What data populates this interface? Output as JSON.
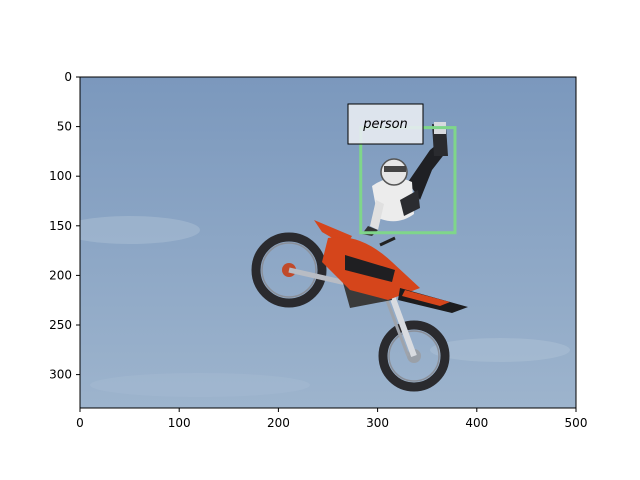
{
  "axes": {
    "x_ticks": [
      "0",
      "100",
      "200",
      "300",
      "400",
      "500"
    ],
    "y_ticks": [
      "0",
      "50",
      "100",
      "150",
      "200",
      "250",
      "300"
    ],
    "x_range": [
      0,
      500
    ],
    "y_range": [
      0,
      334
    ],
    "y_inverted": true
  },
  "image": {
    "width": 500,
    "height": 334,
    "subject": "motocross rider performing a mid-air stunt above an orange dirt bike against a blue sky"
  },
  "detections": [
    {
      "label": "person",
      "box": {
        "x_min": 283,
        "y_min": 51,
        "x_max": 378,
        "y_max": 157
      },
      "color": "#7fd68a"
    }
  ],
  "colors": {
    "sky_top": "#7b98bd",
    "sky_bottom": "#98b1cb",
    "bike_orange": "#d5451b",
    "label_bg": "#e8ecf2"
  }
}
